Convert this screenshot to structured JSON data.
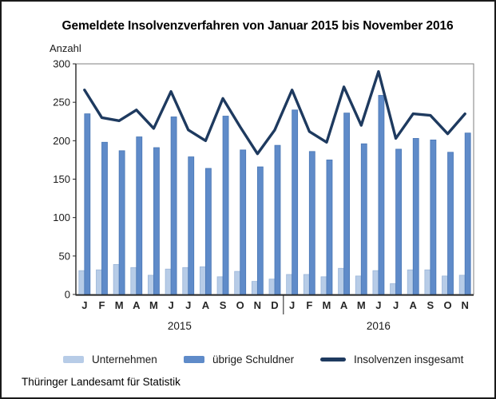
{
  "window": {
    "background": "#ffffff",
    "border_color": "#1a1a1a"
  },
  "chart_data": {
    "type": "bar",
    "subtype": "grouped-bars-with-total-line",
    "title": "Gemeldete Insolvenzverfahren von Januar 2015 bis November 2016",
    "ylabel": "Anzahl",
    "xlabel": "",
    "ylim": [
      0,
      300
    ],
    "yticks": [
      0,
      50,
      100,
      150,
      200,
      250,
      300
    ],
    "grid": false,
    "legend_position": "bottom",
    "x_groups": [
      {
        "year": "2015",
        "months": [
          "J",
          "F",
          "M",
          "A",
          "M",
          "J",
          "J",
          "A",
          "S",
          "O",
          "N",
          "D"
        ]
      },
      {
        "year": "2016",
        "months": [
          "J",
          "F",
          "M",
          "A",
          "M",
          "J",
          "J",
          "A",
          "S",
          "O",
          "N"
        ]
      }
    ],
    "series": [
      {
        "name": "Unternehmen",
        "type": "bar",
        "color": "#b7cce7",
        "border": "#9ab5d8",
        "values": [
          31,
          32,
          39,
          35,
          25,
          33,
          35,
          36,
          23,
          30,
          17,
          20,
          26,
          26,
          23,
          34,
          24,
          31,
          14,
          32,
          32,
          24,
          25
        ]
      },
      {
        "name": "übrige Schuldner",
        "type": "bar",
        "color": "#5f8bc9",
        "border": "#4a77b5",
        "values": [
          235,
          198,
          187,
          205,
          191,
          231,
          179,
          164,
          232,
          188,
          166,
          194,
          240,
          186,
          175,
          236,
          196,
          259,
          189,
          203,
          201,
          185,
          210
        ]
      },
      {
        "name": "Insolvenzen insgesamt",
        "type": "line",
        "color": "#1e3a5f",
        "values": [
          266,
          230,
          226,
          240,
          216,
          264,
          214,
          200,
          255,
          218,
          183,
          214,
          266,
          212,
          198,
          270,
          220,
          290,
          203,
          235,
          233,
          209,
          235
        ]
      }
    ],
    "axis_colors": {
      "frame": "#7f7f7f",
      "axis": "#262626",
      "tick_label": "#1a1a1a",
      "month_label": "#262626"
    },
    "source": "Thüringer Landesamt für Statistik"
  }
}
